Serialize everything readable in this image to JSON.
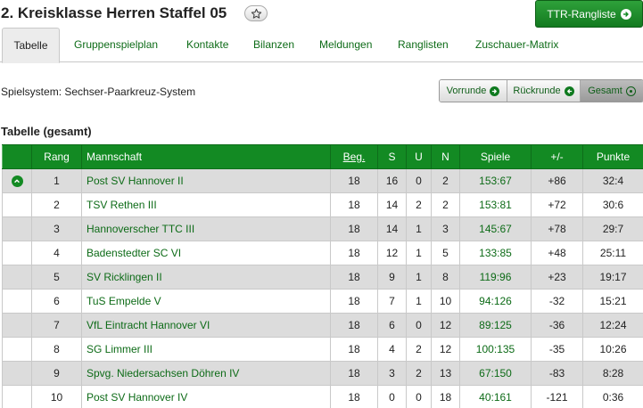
{
  "header": {
    "title": "2. Kreisklasse Herren Staffel 05",
    "ttr_button": "TTR-Rangliste"
  },
  "tabs": [
    {
      "label": "Tabelle",
      "active": true
    },
    {
      "label": "Gruppenspielplan"
    },
    {
      "label": "Kontakte"
    },
    {
      "label": "Bilanzen"
    },
    {
      "label": "Meldungen"
    },
    {
      "label": "Ranglisten"
    },
    {
      "label": "Zuschauer-Matrix"
    }
  ],
  "system": "Spielsystem: Sechser-Paarkreuz-System",
  "rounds": {
    "vorrunde": "Vorrunde",
    "rueckrunde": "Rückrunde",
    "gesamt": "Gesamt",
    "selected": "Gesamt"
  },
  "table_title": "Tabelle (gesamt)",
  "columns": {
    "rang": "Rang",
    "mannschaft": "Mannschaft",
    "beg": "Beg.",
    "s": "S",
    "u": "U",
    "n": "N",
    "spiele": "Spiele",
    "diff": "+/-",
    "punkte": "Punkte"
  },
  "rows": [
    {
      "rang": "1",
      "team": "Post SV Hannover II",
      "beg": "18",
      "s": "16",
      "u": "0",
      "n": "2",
      "spiele": "153:67",
      "diff": "+86",
      "punkte": "32:4",
      "promotion": true
    },
    {
      "rang": "2",
      "team": "TSV Rethen III",
      "beg": "18",
      "s": "14",
      "u": "2",
      "n": "2",
      "spiele": "153:81",
      "diff": "+72",
      "punkte": "30:6"
    },
    {
      "rang": "3",
      "team": "Hannoverscher TTC III",
      "beg": "18",
      "s": "14",
      "u": "1",
      "n": "3",
      "spiele": "145:67",
      "diff": "+78",
      "punkte": "29:7"
    },
    {
      "rang": "4",
      "team": "Badenstedter SC VI",
      "beg": "18",
      "s": "12",
      "u": "1",
      "n": "5",
      "spiele": "133:85",
      "diff": "+48",
      "punkte": "25:11"
    },
    {
      "rang": "5",
      "team": "SV Ricklingen II",
      "beg": "18",
      "s": "9",
      "u": "1",
      "n": "8",
      "spiele": "119:96",
      "diff": "+23",
      "punkte": "19:17"
    },
    {
      "rang": "6",
      "team": "TuS Empelde V",
      "beg": "18",
      "s": "7",
      "u": "1",
      "n": "10",
      "spiele": "94:126",
      "diff": "-32",
      "punkte": "15:21"
    },
    {
      "rang": "7",
      "team": "VfL Eintracht Hannover VI",
      "beg": "18",
      "s": "6",
      "u": "0",
      "n": "12",
      "spiele": "89:125",
      "diff": "-36",
      "punkte": "12:24"
    },
    {
      "rang": "8",
      "team": "SG Limmer III",
      "beg": "18",
      "s": "4",
      "u": "2",
      "n": "12",
      "spiele": "100:135",
      "diff": "-35",
      "punkte": "10:26"
    },
    {
      "rang": "9",
      "team": "Spvg. Niedersachsen Döhren IV",
      "beg": "18",
      "s": "3",
      "u": "2",
      "n": "13",
      "spiele": "67:150",
      "diff": "-83",
      "punkte": "8:28"
    },
    {
      "rang": "10",
      "team": "Post SV Hannover IV",
      "beg": "18",
      "s": "0",
      "u": "0",
      "n": "18",
      "spiele": "40:161",
      "diff": "-121",
      "punkte": "0:36"
    }
  ],
  "colors": {
    "brand_green": "#138a23",
    "link_green": "#0d6b17",
    "alt_row": "#dcdcdc"
  },
  "icons": {
    "favorite": "star-icon",
    "ttr_arrow": "arrow-right-circle-icon",
    "vorrunde": "arrow-right-circle-icon",
    "rueckrunde": "arrow-left-circle-icon",
    "gesamt": "radio-dot-icon",
    "promotion": "chevron-up-circle-icon"
  }
}
